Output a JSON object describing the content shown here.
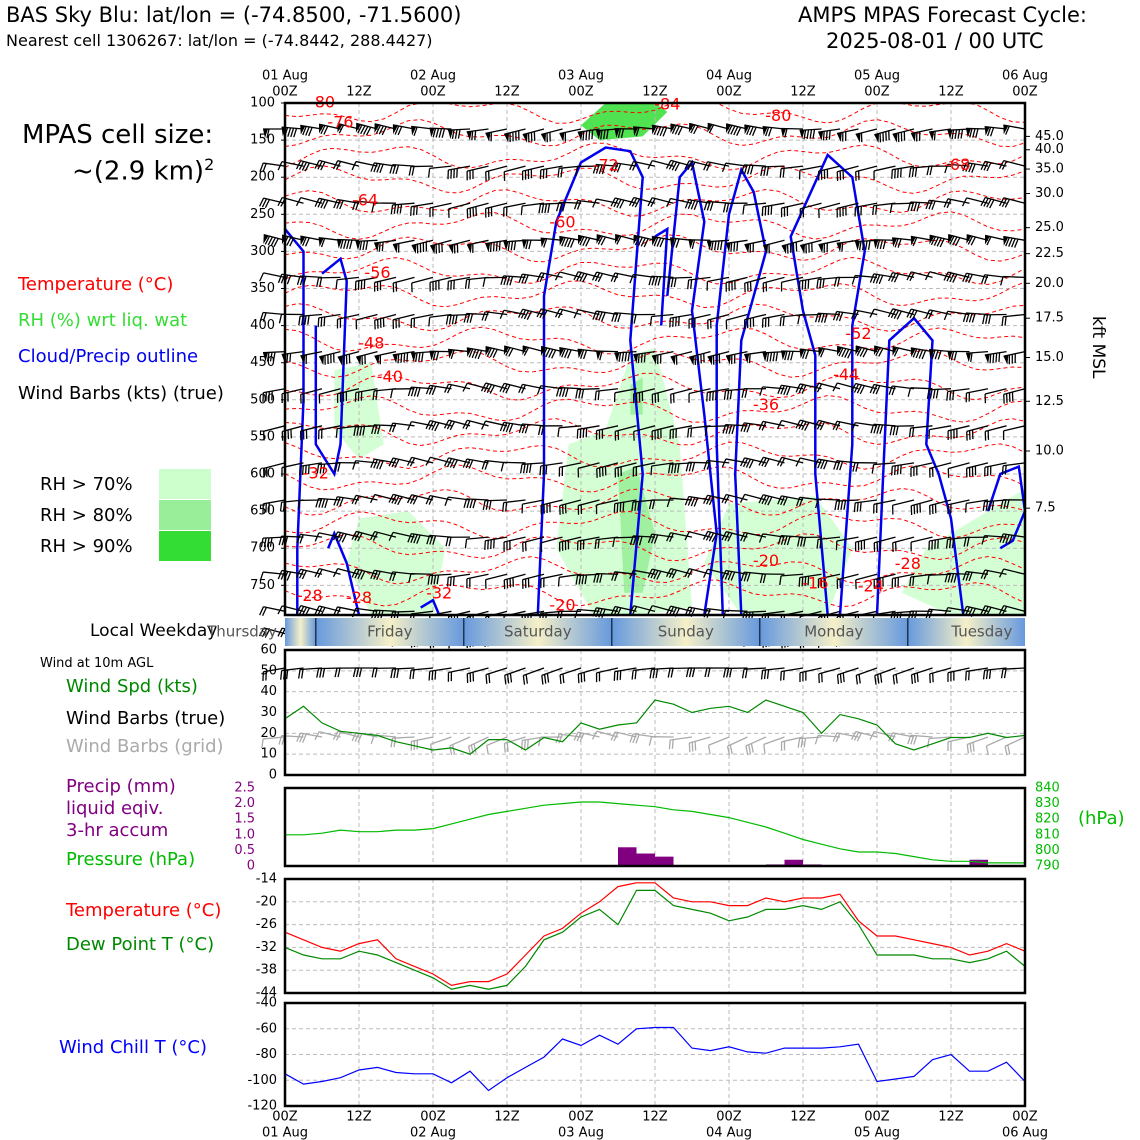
{
  "header": {
    "left_line1": "BAS Sky Blu: lat/lon = (-74.8500, -71.5600)",
    "left_line2": "Nearest cell 1306267: lat/lon = (-74.8442, 288.4427)",
    "right_line1": "AMPS MPAS Forecast Cycle:",
    "right_line2": "2025-08-01 / 00 UTC"
  },
  "side": {
    "cell_size_line1": "MPAS cell size:",
    "cell_size_line2": "~(2.9 km)",
    "cell_size_sup": "2",
    "legend_temperature": "Temperature (°C)",
    "legend_rh": "RH (%) wrt liq. wat",
    "legend_cloud": "Cloud/Precip outline",
    "legend_wind": "Wind Barbs (kts) (true)",
    "rh70": "RH > 70%",
    "rh80": "RH > 80%",
    "rh90": "RH > 90%",
    "local_weekday": "Local Weekday",
    "wind_10m": "Wind at 10m AGL",
    "wind_spd": "Wind Spd (kts)",
    "wind_barbs_true": "Wind Barbs (true)",
    "wind_barbs_grid": "Wind Barbs (grid)",
    "precip1": "Precip (mm)",
    "precip2": "liquid eqiv.",
    "precip3": "3-hr accum",
    "pressure": "Pressure (hPa)",
    "temp": "Temperature (°C)",
    "dewpoint": "Dew Point T (°C)",
    "windchill": "Wind Chill T (°C)",
    "kft_label": "kft MSL",
    "hpa_label": "(hPa)"
  },
  "colors": {
    "temperature": "#ff0000",
    "rh": "#33dd33",
    "cloud": "#0000ee",
    "wind_spd": "#008800",
    "grid_barbs": "#aaaaaa",
    "precip": "#800080",
    "pressure": "#00bb00",
    "windchill": "#0000ff",
    "rh70": "#ccffcc",
    "rh80": "#99ee99",
    "rh90": "#33dd33"
  },
  "time_axis": {
    "top_days": [
      "01 Aug",
      "02 Aug",
      "03 Aug",
      "04 Aug",
      "05 Aug",
      "06 Aug"
    ],
    "top_hours": [
      "00Z",
      "12Z",
      "00Z",
      "12Z",
      "00Z",
      "12Z",
      "00Z",
      "12Z",
      "00Z",
      "12Z",
      "00Z"
    ],
    "bottom_hours": [
      "00Z",
      "12Z",
      "00Z",
      "12Z",
      "00Z",
      "12Z",
      "00Z",
      "12Z",
      "00Z",
      "12Z",
      "00Z"
    ],
    "bottom_days": [
      "01 Aug",
      "02 Aug",
      "03 Aug",
      "04 Aug",
      "05 Aug",
      "06 Aug"
    ],
    "x_hours": [
      0,
      12,
      24,
      36,
      48,
      60,
      72,
      84,
      96,
      108,
      120
    ]
  },
  "weekdays": [
    "Thursday",
    "Friday",
    "Saturday",
    "Sunday",
    "Monday",
    "Tuesday"
  ],
  "chart_data": [
    {
      "type": "heatmap",
      "name": "cross-section",
      "y_left_ticks": [
        100,
        150,
        200,
        250,
        300,
        350,
        400,
        450,
        500,
        550,
        600,
        650,
        700,
        750
      ],
      "y_right_ticks": [
        "45.0",
        "40.0",
        "35.0",
        "30.0",
        "25.0",
        "22.5",
        "20.0",
        "17.5",
        "15.0",
        "12.5",
        "10.0",
        "7.5"
      ],
      "y_right_pressure": [
        145,
        163,
        189,
        222,
        268,
        303,
        343,
        390,
        443,
        502,
        569,
        646
      ],
      "ylim": [
        790,
        100
      ],
      "temperature_labels": [
        {
          "t": 6,
          "p": 100,
          "v": "-80"
        },
        {
          "t": 9,
          "p": 127,
          "v": "-76"
        },
        {
          "t": 62,
          "p": 103,
          "v": "-84"
        },
        {
          "t": 80,
          "p": 118,
          "v": "-80"
        },
        {
          "t": 52,
          "p": 185,
          "v": "-72"
        },
        {
          "t": 109,
          "p": 184,
          "v": "-68"
        },
        {
          "t": 13,
          "p": 232,
          "v": "-64"
        },
        {
          "t": 45,
          "p": 262,
          "v": "-60"
        },
        {
          "t": 15,
          "p": 330,
          "v": "-56"
        },
        {
          "t": 93,
          "p": 412,
          "v": "-52"
        },
        {
          "t": 14,
          "p": 425,
          "v": "-48"
        },
        {
          "t": 17,
          "p": 470,
          "v": "-40"
        },
        {
          "t": 91,
          "p": 467,
          "v": "-44"
        },
        {
          "t": 78,
          "p": 508,
          "v": "-36"
        },
        {
          "t": 5,
          "p": 600,
          "v": "-32"
        },
        {
          "t": 4,
          "p": 765,
          "v": "-28"
        },
        {
          "t": 12,
          "p": 768,
          "v": "-28"
        },
        {
          "t": 25,
          "p": 762,
          "v": "-32"
        },
        {
          "t": 45,
          "p": 778,
          "v": "-20"
        },
        {
          "t": 78,
          "p": 718,
          "v": "-20"
        },
        {
          "t": 86,
          "p": 748,
          "v": "-16"
        },
        {
          "t": 95,
          "p": 752,
          "v": "-24"
        },
        {
          "t": 101,
          "p": 722,
          "v": "-28"
        }
      ]
    },
    {
      "type": "line",
      "name": "wind-speed",
      "ylim": [
        0,
        60
      ],
      "y_ticks": [
        0,
        10,
        20,
        30,
        40,
        50,
        60
      ],
      "x": [
        0,
        3,
        6,
        9,
        12,
        15,
        18,
        21,
        24,
        27,
        30,
        33,
        36,
        39,
        42,
        45,
        48,
        51,
        54,
        57,
        60,
        63,
        66,
        69,
        72,
        75,
        78,
        81,
        84,
        87,
        90,
        93,
        96,
        99,
        102,
        105,
        108,
        111,
        114,
        117,
        120
      ],
      "series": [
        {
          "name": "Wind Spd (kts)",
          "values": [
            27,
            33,
            25,
            21,
            20,
            19,
            16,
            14,
            12,
            13,
            10,
            17,
            17,
            12,
            18,
            16,
            25,
            22,
            24,
            25,
            36,
            34,
            30,
            32,
            33,
            30,
            36,
            33,
            30,
            20,
            29,
            27,
            24,
            15,
            12,
            15,
            18,
            18,
            20,
            18,
            19
          ]
        }
      ]
    },
    {
      "type": "bar",
      "name": "precip-pressure",
      "precip_ylim": [
        0,
        2.5
      ],
      "precip_ticks": [
        "0",
        "0.5",
        "1.0",
        "1.5",
        "2.0",
        "2.5"
      ],
      "pressure_ylim": [
        790,
        840
      ],
      "pressure_ticks": [
        790,
        800,
        810,
        820,
        830,
        840
      ],
      "precip_x": [
        54,
        57,
        60,
        66,
        78,
        81,
        84,
        111
      ],
      "precip_values": [
        0.6,
        0.4,
        0.3,
        0.0,
        0.05,
        0.2,
        0.05,
        0.2
      ],
      "pressure_x": [
        0,
        3,
        6,
        9,
        12,
        15,
        18,
        21,
        24,
        27,
        30,
        33,
        36,
        39,
        42,
        45,
        48,
        51,
        54,
        57,
        60,
        63,
        66,
        69,
        72,
        75,
        78,
        81,
        84,
        87,
        90,
        93,
        96,
        99,
        102,
        105,
        108,
        111,
        114,
        117,
        120
      ],
      "pressure_values": [
        810,
        810,
        811,
        813,
        812,
        812,
        813,
        813,
        814,
        817,
        820,
        823,
        825,
        827,
        829,
        830,
        831,
        831,
        830,
        829,
        828,
        826,
        825,
        823,
        821,
        818,
        815,
        811,
        807,
        804,
        801,
        799,
        799,
        798,
        796,
        794,
        793,
        793,
        792,
        792,
        792
      ]
    },
    {
      "type": "line",
      "name": "temperature-dewpoint",
      "ylim": [
        -44,
        -14
      ],
      "y_ticks": [
        -44,
        -38,
        -32,
        -26,
        -20,
        -14
      ],
      "x": [
        0,
        3,
        6,
        9,
        12,
        15,
        18,
        21,
        24,
        27,
        30,
        33,
        36,
        39,
        42,
        45,
        48,
        51,
        54,
        57,
        60,
        63,
        66,
        69,
        72,
        75,
        78,
        81,
        84,
        87,
        90,
        93,
        96,
        99,
        102,
        105,
        108,
        111,
        114,
        117,
        120
      ],
      "series": [
        {
          "name": "Temperature (°C)",
          "values": [
            -28,
            -30,
            -32,
            -33,
            -31,
            -30,
            -35,
            -37,
            -39,
            -42,
            -41,
            -41,
            -39,
            -34,
            -29,
            -27,
            -23,
            -20,
            -16,
            -15,
            -15,
            -19,
            -20,
            -20,
            -21,
            -21,
            -19,
            -20,
            -19,
            -19,
            -18,
            -25,
            -29,
            -29,
            -30,
            -31,
            -32,
            -34,
            -33,
            -31,
            -33
          ]
        },
        {
          "name": "Dew Point T (°C)",
          "values": [
            -32,
            -34,
            -35,
            -35,
            -33,
            -34,
            -36,
            -38,
            -40,
            -43,
            -42,
            -43,
            -42,
            -37,
            -30,
            -28,
            -24,
            -22,
            -26,
            -17,
            -17,
            -21,
            -22,
            -23,
            -25,
            -24,
            -22,
            -22,
            -21,
            -22,
            -20,
            -26,
            -34,
            -34,
            -34,
            -35,
            -35,
            -36,
            -35,
            -33,
            -37
          ]
        }
      ]
    },
    {
      "type": "line",
      "name": "wind-chill",
      "ylim": [
        -120,
        -40
      ],
      "y_ticks": [
        -120,
        -100,
        -80,
        -60,
        -40
      ],
      "x": [
        0,
        3,
        6,
        9,
        12,
        15,
        18,
        21,
        24,
        27,
        30,
        33,
        36,
        39,
        42,
        45,
        48,
        51,
        54,
        57,
        60,
        63,
        66,
        69,
        72,
        75,
        78,
        81,
        84,
        87,
        90,
        93,
        96,
        99,
        102,
        105,
        108,
        111,
        114,
        117,
        120
      ],
      "series": [
        {
          "name": "Wind Chill T (°C)",
          "values": [
            -95,
            -103,
            -101,
            -98,
            -92,
            -90,
            -94,
            -95,
            -95,
            -102,
            -93,
            -108,
            -98,
            -90,
            -82,
            -68,
            -73,
            -65,
            -72,
            -60,
            -59,
            -59,
            -75,
            -77,
            -74,
            -78,
            -79,
            -75,
            -75,
            -75,
            -74,
            -72,
            -101,
            -99,
            -97,
            -84,
            -80,
            -93,
            -93,
            -86,
            -101
          ]
        }
      ]
    }
  ]
}
